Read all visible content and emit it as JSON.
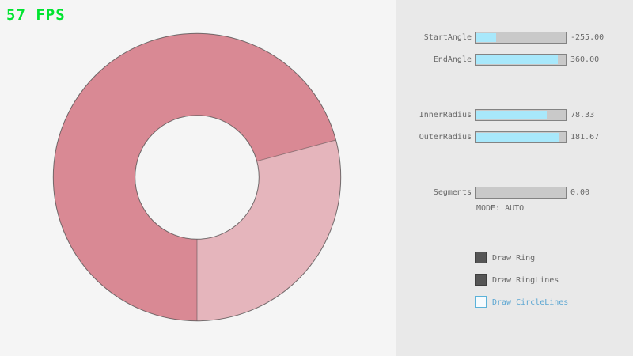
{
  "header": {
    "fps": "57 FPS"
  },
  "colors": {
    "bg-left": "#f5f5f5",
    "panel-bg": "#e9e9e9",
    "panel-border": "#bdbdbd",
    "fps-green": "#00e430",
    "ring-dark": "#d98994",
    "ring-light": "#e5b5bc",
    "ring-line": "#4a4a4a",
    "slider-bg": "#c9c9c9",
    "slider-border": "#838383",
    "slider-fill": "#a8e8fb",
    "text-gray": "#686868",
    "blue-border": "#5bb2d9",
    "blue-text": "#5ba6d2",
    "check-fill": "#565656",
    "check-border": "#3f3f3f"
  },
  "sliders": [
    {
      "label": "StartAngle",
      "value": "-255.00",
      "fill_pct": 22
    },
    {
      "label": "EndAngle",
      "value": "360.00",
      "fill_pct": 90
    },
    {
      "label": "InnerRadius",
      "value": "78.33",
      "fill_pct": 78
    },
    {
      "label": "OuterRadius",
      "value": "181.67",
      "fill_pct": 91
    },
    {
      "label": "Segments",
      "value": "0.00",
      "fill_pct": 0
    }
  ],
  "mode_text": "MODE: AUTO",
  "checkboxes": [
    {
      "label": "Draw Ring",
      "checked": true
    },
    {
      "label": "Draw RingLines",
      "checked": true
    },
    {
      "label": "Draw CircleLines",
      "checked": false
    }
  ]
}
